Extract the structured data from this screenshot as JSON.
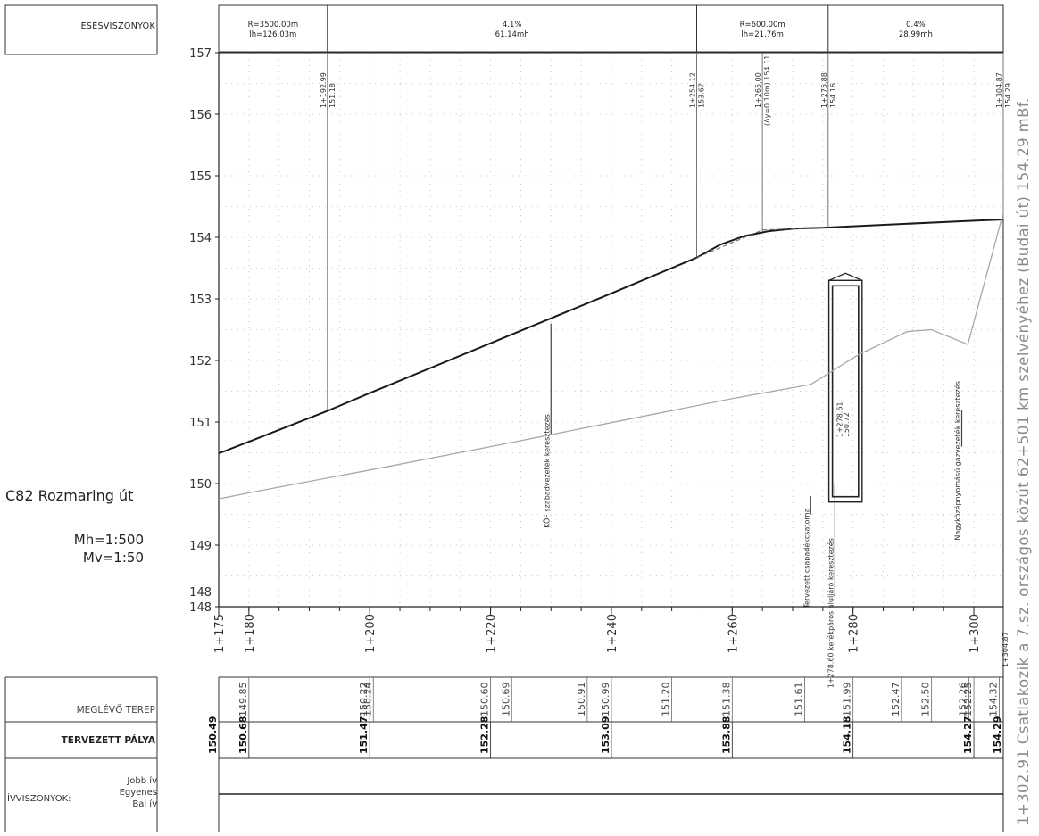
{
  "drawing": {
    "side_title": "C82 Rozmaring út",
    "scale_horizontal": "Mh=1:500",
    "scale_vertical": "Mv=1:50",
    "right_note": "1+302.91 Csatlakozik a 7.sz. országos közút 62+501 km szelvényéhez (Budai út) 154.29 mBf.",
    "grade_header": "ESÉSVISZONYOK",
    "row_meglevo": "MEGLÉVŐ TEREP",
    "row_tervezett": "TERVEZETT PÁLYA",
    "row_ivviszonyok": "ÍVVISZONYOK:",
    "iv_jobb": "Jobb ív",
    "iv_egyenes": "Egyenes",
    "iv_bal": "Bal ív"
  },
  "grade_segments": [
    {
      "l1": "R=3500.00m",
      "l2": "lh=126.03m",
      "from": 175,
      "to": 192.99
    },
    {
      "l1": "4.1%",
      "l2": "61.14mh",
      "from": 192.99,
      "to": 254.12
    },
    {
      "l1": "R=600.00m",
      "l2": "lh=21.76m",
      "from": 254.12,
      "to": 275.88
    },
    {
      "l1": "0.4%",
      "l2": "28.99mh",
      "from": 275.88,
      "to": 304.87
    }
  ],
  "chart_data": {
    "type": "line",
    "x_range": [
      175,
      304.87
    ],
    "y_range": [
      148,
      157
    ],
    "y_ticks": [
      148,
      149,
      150,
      151,
      152,
      153,
      154,
      155,
      156,
      157
    ],
    "y_tick_labels": [
      "148",
      "149",
      "150",
      "151",
      "152",
      "153",
      "154",
      "155",
      "156",
      "157"
    ],
    "y_bottom_label": "148",
    "x_ticks": [
      {
        "x": 175,
        "label": "1+175"
      },
      {
        "x": 180,
        "label": "1+180"
      },
      {
        "x": 200,
        "label": "1+200"
      },
      {
        "x": 220,
        "label": "1+220"
      },
      {
        "x": 240,
        "label": "1+240"
      },
      {
        "x": 260,
        "label": "1+260"
      },
      {
        "x": 280,
        "label": "1+280"
      },
      {
        "x": 300,
        "label": "1+300"
      },
      {
        "x": 304.87,
        "label": "1+304.87"
      }
    ],
    "series": [
      {
        "role": "design",
        "color": "#1a1a1a",
        "x": [
          175,
          180,
          192.99,
          200,
          220,
          240,
          254.12,
          258,
          262,
          266,
          270,
          275.88,
          280,
          300,
          304.87
        ],
        "y": [
          150.49,
          150.68,
          151.18,
          151.47,
          152.28,
          153.09,
          153.67,
          153.88,
          154.02,
          154.1,
          154.14,
          154.16,
          154.18,
          154.27,
          154.29
        ]
      },
      {
        "role": "terrain",
        "color": "#a8a8a8",
        "x": [
          175,
          180,
          200,
          220,
          240,
          260,
          273,
          281,
          289,
          293,
          299,
          304.87
        ],
        "y": [
          149.75,
          149.85,
          150.22,
          150.6,
          150.99,
          151.38,
          151.61,
          152.1,
          152.47,
          152.5,
          152.26,
          154.4
        ]
      }
    ],
    "point_labels": [
      {
        "x": 192.99,
        "station": "1+192.99",
        "elev": "151.18"
      },
      {
        "x": 254.12,
        "station": "1+254.12",
        "elev": "153.67"
      },
      {
        "x": 265.0,
        "station": "1+265.00",
        "elev": "(Δy=0.10m) 154.11"
      },
      {
        "x": 275.88,
        "station": "1+275.88",
        "elev": "154.16"
      },
      {
        "x": 304.87,
        "station": "1+304.87",
        "elev": "154.29"
      }
    ],
    "crossings": [
      {
        "x": 230,
        "text": "KÖF szabadvezeték keresztezés",
        "y_top": 152.6,
        "y_bot": 150.8
      },
      {
        "x": 273,
        "text": "Tervezett csapadékcsatorna",
        "y_top": 149.8,
        "y_bot": 149.5
      },
      {
        "x": 277,
        "text": "1+278.60 kerékpáros aluljáró keresztezés",
        "y_top": 150.0,
        "y_bot": 148.2
      },
      {
        "x": 298,
        "text": "Nagyközépnyomású gázvezeték keresztezés",
        "y_top": 151.2,
        "y_bot": 150.6
      }
    ],
    "underpass": {
      "station": "1+278.61",
      "elev": "150.72",
      "x_from": 276,
      "x_to": 281.5,
      "y_top": 153.3,
      "y_bot": 149.7
    },
    "terrain_row": [
      {
        "x": 180,
        "v": "149.85"
      },
      {
        "x": 200,
        "v": "150.22"
      },
      {
        "x": 200.6,
        "v": "150.24"
      },
      {
        "x": 220,
        "v": "150.60"
      },
      {
        "x": 223.5,
        "v": "150.69"
      },
      {
        "x": 236,
        "v": "150.91"
      },
      {
        "x": 240,
        "v": "150.99"
      },
      {
        "x": 250,
        "v": "151.20"
      },
      {
        "x": 260,
        "v": "151.38"
      },
      {
        "x": 272,
        "v": "151.61"
      },
      {
        "x": 280,
        "v": "151.99"
      },
      {
        "x": 288,
        "v": "152.47"
      },
      {
        "x": 293,
        "v": "152.50"
      },
      {
        "x": 299.2,
        "v": "152.26"
      },
      {
        "x": 300,
        "v": "152.25"
      },
      {
        "x": 304.2,
        "v": "154.32"
      }
    ],
    "design_row": [
      {
        "x": 175,
        "v": "150.49"
      },
      {
        "x": 180,
        "v": "150.68"
      },
      {
        "x": 200,
        "v": "151.47"
      },
      {
        "x": 220,
        "v": "152.28"
      },
      {
        "x": 240,
        "v": "153.09"
      },
      {
        "x": 260,
        "v": "153.88"
      },
      {
        "x": 280,
        "v": "154.18"
      },
      {
        "x": 300,
        "v": "154.27"
      },
      {
        "x": 304.87,
        "v": "154.29"
      }
    ]
  }
}
